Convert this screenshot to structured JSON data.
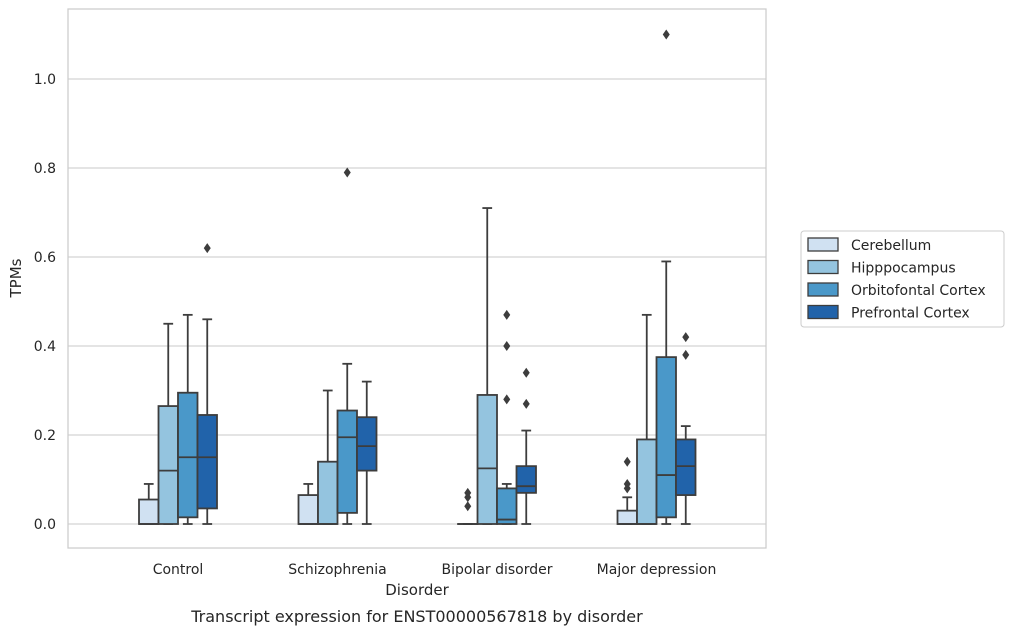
{
  "chart_data": {
    "type": "boxplot",
    "xlabel": "Disorder",
    "ylabel": "TPMs",
    "caption": "Transcript expression for ENST00000567818 by disorder",
    "ylim": [
      -0.055,
      1.165
    ],
    "yticks": [
      0.0,
      0.2,
      0.4,
      0.6,
      0.8,
      1.0
    ],
    "ytick_labels": [
      "0.0",
      "0.2",
      "0.4",
      "0.6",
      "0.8",
      "1.0"
    ],
    "grid": "horizontal",
    "legend_position": "right",
    "categories": [
      "Control",
      "Schizophrenia",
      "Bipolar disorder",
      "Major depression"
    ],
    "series": [
      {
        "name": "Cerebellum",
        "color": "#d0e1f2",
        "boxes": [
          {
            "whislo": 0.0,
            "q1": 0.0,
            "med": 0.0,
            "q3": 0.055,
            "whishi": 0.09,
            "fliers": []
          },
          {
            "whislo": 0.0,
            "q1": 0.0,
            "med": 0.0,
            "q3": 0.065,
            "whishi": 0.09,
            "fliers": []
          },
          {
            "whislo": 0.0,
            "q1": 0.0,
            "med": 0.0,
            "q3": 0.0,
            "whishi": 0.0,
            "fliers": [
              0.04,
              0.06,
              0.07
            ]
          },
          {
            "whislo": 0.0,
            "q1": 0.0,
            "med": 0.0,
            "q3": 0.03,
            "whishi": 0.06,
            "fliers": [
              0.08,
              0.09,
              0.14
            ]
          }
        ]
      },
      {
        "name": "Hipppocampus",
        "color": "#94c4df",
        "boxes": [
          {
            "whislo": 0.0,
            "q1": 0.0,
            "med": 0.12,
            "q3": 0.265,
            "whishi": 0.45,
            "fliers": []
          },
          {
            "whislo": 0.0,
            "q1": 0.0,
            "med": 0.0,
            "q3": 0.14,
            "whishi": 0.3,
            "fliers": []
          },
          {
            "whislo": 0.0,
            "q1": 0.0,
            "med": 0.125,
            "q3": 0.29,
            "whishi": 0.71,
            "fliers": []
          },
          {
            "whislo": 0.0,
            "q1": 0.0,
            "med": 0.0,
            "q3": 0.19,
            "whishi": 0.47,
            "fliers": []
          }
        ]
      },
      {
        "name": "Orbitofontal Cortex",
        "color": "#4a98c9",
        "boxes": [
          {
            "whislo": 0.0,
            "q1": 0.015,
            "med": 0.15,
            "q3": 0.295,
            "whishi": 0.47,
            "fliers": []
          },
          {
            "whislo": 0.0,
            "q1": 0.025,
            "med": 0.195,
            "q3": 0.255,
            "whishi": 0.36,
            "fliers": [
              0.79
            ]
          },
          {
            "whislo": 0.0,
            "q1": 0.0,
            "med": 0.01,
            "q3": 0.08,
            "whishi": 0.09,
            "fliers": [
              0.28,
              0.4,
              0.47
            ]
          },
          {
            "whislo": 0.0,
            "q1": 0.015,
            "med": 0.11,
            "q3": 0.375,
            "whishi": 0.59,
            "fliers": [
              1.1
            ]
          }
        ]
      },
      {
        "name": "Prefrontal Cortex",
        "color": "#2163aa",
        "boxes": [
          {
            "whislo": 0.0,
            "q1": 0.035,
            "med": 0.15,
            "q3": 0.245,
            "whishi": 0.46,
            "fliers": [
              0.62
            ]
          },
          {
            "whislo": 0.0,
            "q1": 0.12,
            "med": 0.175,
            "q3": 0.24,
            "whishi": 0.32,
            "fliers": []
          },
          {
            "whislo": 0.0,
            "q1": 0.07,
            "med": 0.085,
            "q3": 0.13,
            "whishi": 0.21,
            "fliers": [
              0.27,
              0.34
            ]
          },
          {
            "whislo": 0.0,
            "q1": 0.065,
            "med": 0.13,
            "q3": 0.19,
            "whishi": 0.22,
            "fliers": [
              0.38,
              0.42
            ]
          }
        ]
      }
    ]
  }
}
